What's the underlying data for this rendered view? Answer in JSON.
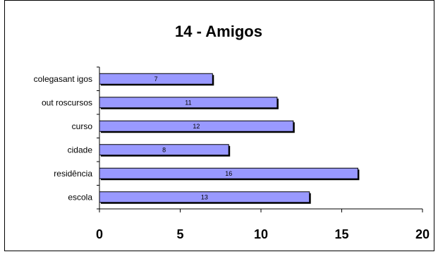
{
  "chart_data": {
    "type": "bar",
    "orientation": "horizontal",
    "title": "14 - Amigos",
    "xlabel": "",
    "ylabel": "",
    "categories": [
      "escola",
      "residência",
      "cidade",
      "curso",
      "outroscursos",
      "colegasantigos"
    ],
    "category_labels_shown": [
      "escola",
      "residência",
      "cidade",
      "curso",
      "out roscursos",
      "colegasant igos"
    ],
    "values": [
      13,
      16,
      8,
      12,
      11,
      7
    ],
    "value_labels": [
      "13",
      "16",
      "8",
      "12",
      "11",
      "7"
    ],
    "xlim": [
      0,
      20
    ],
    "x_ticks": [
      0,
      5,
      10,
      15,
      20
    ],
    "x_tick_labels": [
      "0",
      "5",
      "10",
      "15",
      "20"
    ],
    "grid": false,
    "legend": "none",
    "colors": {
      "bar_fill": "#9999ff",
      "bar_stroke": "#000000",
      "bar_shadow": "#000000",
      "axis": "#000000",
      "frame": "#000000",
      "background": "#ffffff"
    }
  }
}
